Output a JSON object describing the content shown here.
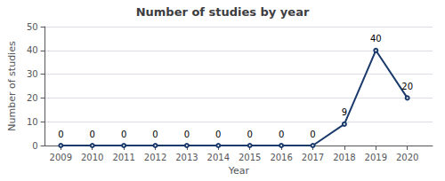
{
  "chart_data": {
    "type": "line",
    "title": "Number of studies by year",
    "xlabel": "Year",
    "ylabel": "Number of studies",
    "x": [
      2009,
      2010,
      2011,
      2012,
      2013,
      2014,
      2015,
      2016,
      2017,
      2018,
      2019,
      2020
    ],
    "values": [
      0,
      0,
      0,
      0,
      0,
      0,
      0,
      0,
      0,
      9,
      40,
      20
    ],
    "color": "#1a3a6b",
    "xlim": [
      2008.5,
      2020.8
    ],
    "xticks": [
      2009,
      2010,
      2011,
      2012,
      2013,
      2014,
      2015,
      2016,
      2017,
      2018,
      2019,
      2020
    ],
    "ylim": [
      0,
      50
    ],
    "yticks": [
      0,
      10,
      20,
      30,
      40,
      50
    ],
    "grid": true,
    "data_labels": true
  }
}
